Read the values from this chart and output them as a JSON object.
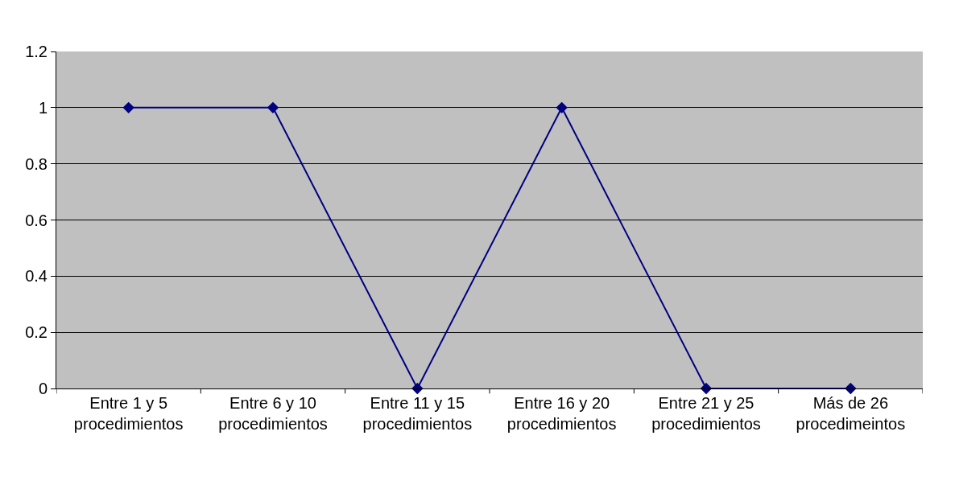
{
  "chart_data": {
    "type": "line",
    "categories": [
      "Entre 1 y 5\nprocedimientos",
      "Entre 6 y 10\nprocedimientos",
      "Entre 11 y 15\nprocedimientos",
      "Entre 16 y 20\nprocedimientos",
      "Entre 21 y 25\nprocedimientos",
      "Más de 26\nprocedimeintos"
    ],
    "series": [
      {
        "color": "#000080",
        "values": [
          1,
          1,
          0,
          1,
          0,
          0
        ]
      }
    ],
    "ylim": [
      0,
      1.2
    ],
    "yticks": [
      0,
      0.2,
      0.4,
      0.6,
      0.8,
      1,
      1.2
    ],
    "grid": "y",
    "legend": false,
    "marker": "diamond",
    "line_style": "solid"
  }
}
